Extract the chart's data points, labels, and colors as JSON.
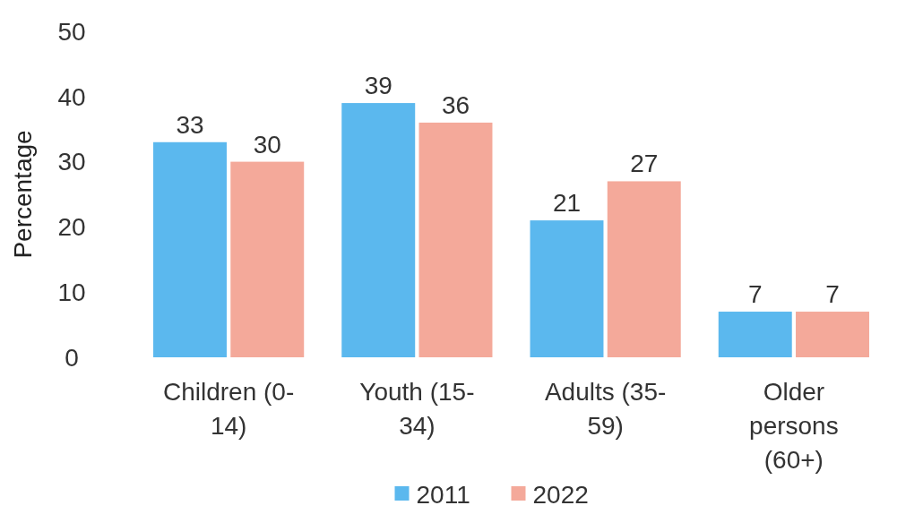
{
  "chart_data": {
    "type": "bar",
    "ylabel": "Percentage",
    "categories": [
      "Children (0-14)",
      "Youth (15-34)",
      "Adults (35-59)",
      "Older persons (60+)"
    ],
    "series": [
      {
        "name": "2011",
        "color": "#5bb8ee",
        "values": [
          33,
          39,
          21,
          7
        ]
      },
      {
        "name": "2022",
        "color": "#f4a99a",
        "values": [
          30,
          36,
          27,
          7
        ]
      }
    ],
    "ylim": [
      0,
      50
    ],
    "yticks": [
      0,
      10,
      20,
      30,
      40,
      50
    ],
    "data_labels": true,
    "legend": "bottom",
    "grid": false
  }
}
